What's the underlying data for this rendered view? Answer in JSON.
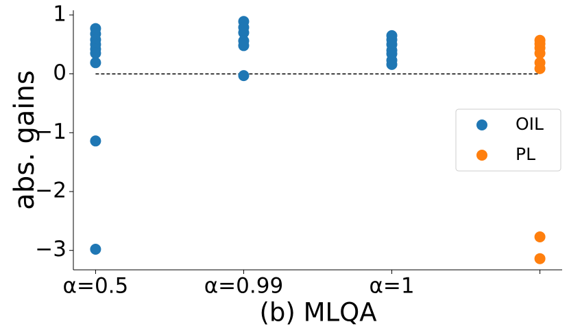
{
  "chart_data": {
    "type": "scatter",
    "xlabel": "(b) MLQA",
    "ylabel": "abs. gains",
    "xlim": [
      -0.15,
      3.15
    ],
    "ylim": [
      -3.33,
      1.08
    ],
    "xticks": [
      {
        "value": 0,
        "label": "α=0.5"
      },
      {
        "value": 1,
        "label": "α=0.99"
      },
      {
        "value": 2,
        "label": "α=1"
      },
      {
        "value": 3,
        "label": null
      }
    ],
    "yticks": [
      {
        "value": -3,
        "label": "−3"
      },
      {
        "value": -2,
        "label": "−2"
      },
      {
        "value": -1,
        "label": "−1"
      },
      0,
      1
    ],
    "reference_line": {
      "value": 0,
      "x": [
        0,
        3
      ]
    },
    "legend": "center right",
    "series": [
      {
        "name": "OIL",
        "color": "#1f77b4",
        "x": [
          0,
          0,
          0,
          0,
          0,
          0,
          0,
          0,
          0,
          1,
          1,
          1,
          1,
          1,
          1,
          2,
          2,
          2,
          2,
          2,
          2,
          2
        ],
        "values": [
          0.77,
          0.68,
          0.58,
          0.5,
          0.42,
          0.35,
          0.19,
          -1.14,
          -2.98,
          0.89,
          0.79,
          0.7,
          0.56,
          0.48,
          -0.03,
          0.65,
          0.58,
          0.5,
          0.4,
          0.34,
          0.23,
          0.16
        ]
      },
      {
        "name": "PL",
        "color": "#ff7f0e",
        "x": [
          3,
          3,
          3,
          3,
          3,
          3,
          3,
          3
        ],
        "values": [
          0.57,
          0.51,
          0.44,
          0.35,
          0.19,
          0.09,
          -2.77,
          -3.14
        ]
      }
    ]
  }
}
